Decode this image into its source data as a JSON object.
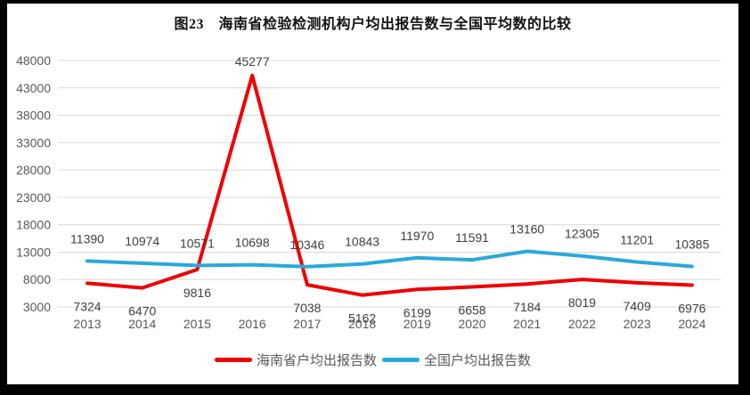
{
  "frame": {
    "background": "#000000",
    "panel_background": "#ffffff"
  },
  "chart_data": {
    "type": "line",
    "title": "图23　海南省检验检测机构户均出报告数与全国平均数的比较",
    "x_labels": [
      "2013",
      "2014",
      "2015",
      "2016",
      "2017",
      "2018",
      "2019",
      "2020",
      "2021",
      "2022",
      "2023",
      "2024"
    ],
    "series": [
      {
        "name": "海南省户均出报告数",
        "color": "#f00000",
        "values": [
          7324,
          6470,
          9816,
          45277,
          7038,
          5162,
          6199,
          6658,
          7184,
          8019,
          7409,
          6976
        ],
        "label_position": "below"
      },
      {
        "name": "全国户均出报告数",
        "color": "#29a9dc",
        "values": [
          11390,
          10974,
          10571,
          10698,
          10346,
          10843,
          11970,
          11591,
          13160,
          12305,
          11201,
          10385
        ],
        "label_position": "above"
      }
    ],
    "ylim": [
      3000,
      48000
    ],
    "yticks": [
      48000,
      43000,
      38000,
      33000,
      28000,
      23000,
      18000,
      13000,
      8000,
      3000
    ],
    "grid": true,
    "legend_position": "bottom",
    "colors": {
      "gridline": "#d9d9d9",
      "axis_text": "#595959",
      "data_label_text": "#3f3f3f"
    }
  }
}
